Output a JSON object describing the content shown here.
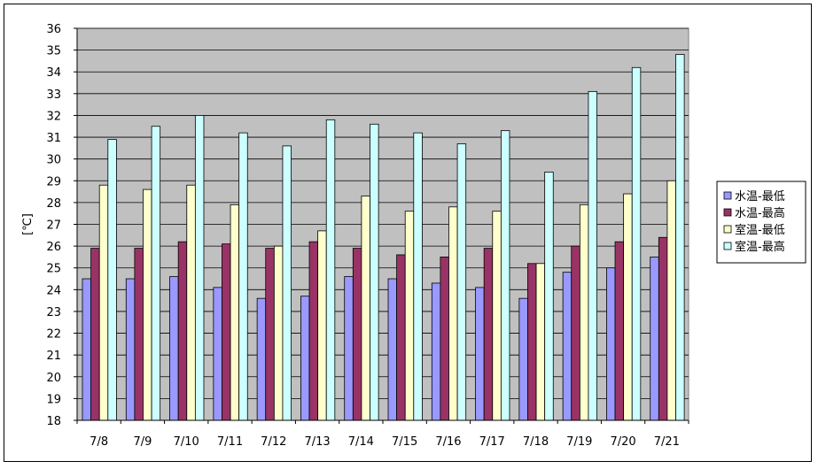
{
  "chart_data": {
    "type": "bar",
    "title": "",
    "xlabel": "",
    "ylabel": "[℃]",
    "ylim": [
      18,
      36
    ],
    "yticks": [
      18,
      19,
      20,
      21,
      22,
      23,
      24,
      25,
      26,
      27,
      28,
      29,
      30,
      31,
      32,
      33,
      34,
      35,
      36
    ],
    "grid": true,
    "legend_position": "right",
    "categories": [
      "7/8",
      "7/9",
      "7/10",
      "7/11",
      "7/12",
      "7/13",
      "7/14",
      "7/15",
      "7/16",
      "7/17",
      "7/18",
      "7/19",
      "7/20",
      "7/21"
    ],
    "series": [
      {
        "name": "水温-最低",
        "color": "#9999ff",
        "values": [
          24.5,
          24.5,
          24.6,
          24.1,
          23.6,
          23.7,
          24.6,
          24.5,
          24.3,
          24.1,
          23.6,
          24.8,
          25.0,
          25.5
        ]
      },
      {
        "name": "水温-最高",
        "color": "#993366",
        "values": [
          25.9,
          25.9,
          26.2,
          26.1,
          25.9,
          26.2,
          25.9,
          25.6,
          25.5,
          25.9,
          25.2,
          26.0,
          26.2,
          26.4
        ]
      },
      {
        "name": "室温-最低",
        "color": "#ffffcc",
        "values": [
          28.8,
          28.6,
          28.8,
          27.9,
          26.0,
          26.7,
          28.3,
          27.6,
          27.8,
          27.6,
          25.2,
          27.9,
          28.4,
          29.0
        ]
      },
      {
        "name": "室温-最高",
        "color": "#ccffff",
        "values": [
          30.9,
          31.5,
          32.0,
          31.2,
          30.6,
          31.8,
          31.6,
          31.2,
          30.7,
          31.3,
          29.4,
          33.1,
          34.2,
          34.8
        ]
      }
    ],
    "plot_background": "#c0c0c0"
  }
}
